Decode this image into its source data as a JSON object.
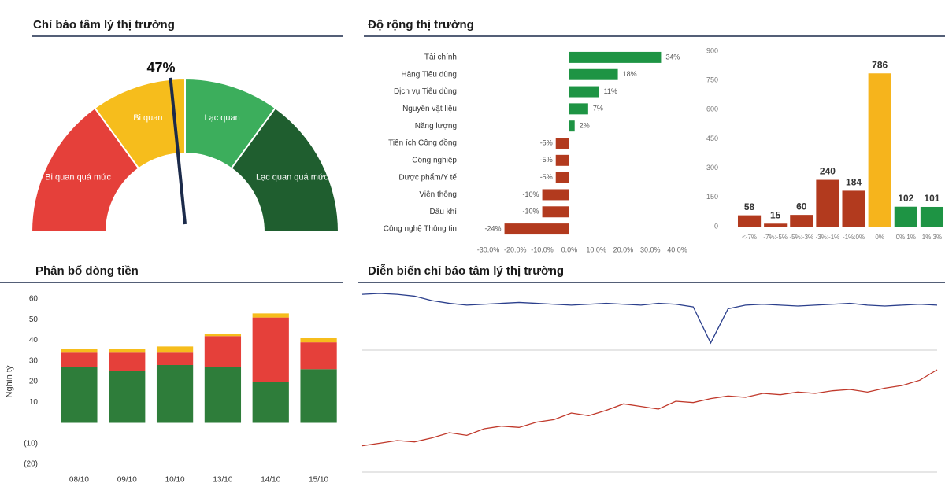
{
  "chart_data": [
    {
      "type": "gauge",
      "title": "Chỉ báo tâm lý thị trường",
      "value": 47,
      "value_label": "47%",
      "needle_color": "#1b2a4a",
      "bands": [
        {
          "label": "Bi quan quá mức",
          "from": 0,
          "to": 30,
          "color": "#e5403a"
        },
        {
          "label": "Bi quan",
          "from": 30,
          "to": 50,
          "color": "#f6bd1c"
        },
        {
          "label": "Lạc quan",
          "from": 50,
          "to": 70,
          "color": "#3cae5c"
        },
        {
          "label": "Lạc quan quá mức",
          "from": 70,
          "to": 100,
          "color": "#1f5e2f"
        }
      ]
    },
    {
      "type": "hbar",
      "title": "Độ rộng thị trường",
      "categories": [
        "Tài chính",
        "Hàng Tiêu dùng",
        "Dịch vụ Tiêu dùng",
        "Nguyên vật liệu",
        "Năng lượng",
        "Tiện ích Cộng đồng",
        "Công nghiệp",
        "Dược phẩm/Y tế",
        "Viễn thông",
        "Dầu khí",
        "Công nghệ Thông tin"
      ],
      "values": [
        34,
        18,
        11,
        7,
        2,
        -5,
        -5,
        -5,
        -10,
        -10,
        -24
      ],
      "value_labels": [
        "34%",
        "18%",
        "11%",
        "7%",
        "2%",
        "-5%",
        "-5%",
        "-5%",
        "-10%",
        "-10%",
        "-24%"
      ],
      "color": "#1e9444",
      "negative_color": "#b23a1e",
      "xlim": [
        -30,
        40
      ],
      "xticks": [
        {
          "value": -30,
          "label": "-30.0%"
        },
        {
          "value": -20,
          "label": "-20.0%"
        },
        {
          "value": -10,
          "label": "-10.0%"
        },
        {
          "value": 0,
          "label": "0.0%"
        },
        {
          "value": 10,
          "label": "10.0%"
        },
        {
          "value": 20,
          "label": "20.0%"
        },
        {
          "value": 30,
          "label": "30.0%"
        },
        {
          "value": 40,
          "label": "40.0%"
        }
      ]
    },
    {
      "type": "column",
      "categories": [
        "<-7%",
        "-7%:-5%",
        "-5%:-3%",
        "-3%:-1%",
        "-1%:0%",
        "0%",
        "0%:1%",
        "1%:3%"
      ],
      "values": [
        58,
        15,
        60,
        240,
        184,
        786,
        102,
        101
      ],
      "colors": [
        "#b23a1e",
        "#b23a1e",
        "#b23a1e",
        "#b23a1e",
        "#b23a1e",
        "#f6b41c",
        "#1e9444",
        "#1e9444"
      ],
      "ylim": [
        0,
        900
      ],
      "yticks": [
        0,
        150,
        300,
        450,
        600,
        750,
        900
      ]
    },
    {
      "type": "stacked-column",
      "title": "Phân bổ dòng tiền",
      "y_label": "Nghìn tỷ",
      "categories": [
        "08/10",
        "09/10",
        "10/10",
        "13/10",
        "14/10",
        "15/10"
      ],
      "series": [
        {
          "color": "#2e7d3a",
          "values": [
            27,
            25,
            28,
            27,
            20,
            26
          ]
        },
        {
          "color": "#e5403a",
          "values": [
            7,
            9,
            6,
            15,
            31,
            13
          ]
        },
        {
          "color": "#f6bd1c",
          "values": [
            2,
            2,
            3,
            1,
            2,
            2
          ]
        }
      ],
      "ylim": [
        -20,
        60
      ],
      "yticks": [
        {
          "value": -20,
          "label": "(20)"
        },
        {
          "value": -10,
          "label": "(10)"
        },
        10,
        20,
        30,
        40,
        50,
        60
      ]
    },
    {
      "type": "line",
      "title": "Diễn biến chỉ báo tâm lý thị trường",
      "color": "#2b3f8c",
      "values": [
        62,
        63,
        62,
        60,
        55,
        52,
        50,
        51,
        52,
        53,
        52,
        51,
        50,
        51,
        52,
        51,
        50,
        52,
        51,
        48,
        8,
        46,
        50,
        51,
        50,
        49,
        50,
        51,
        52,
        50,
        49,
        50,
        51,
        50
      ],
      "ylim": [
        0,
        70
      ]
    },
    {
      "type": "line",
      "color": "#c0392b",
      "values": [
        20,
        22,
        24,
        23,
        26,
        30,
        28,
        33,
        35,
        34,
        38,
        40,
        45,
        43,
        47,
        52,
        50,
        48,
        54,
        53,
        56,
        58,
        57,
        60,
        59,
        61,
        60,
        62,
        63,
        61,
        64,
        66,
        70,
        78
      ],
      "ylim": [
        0,
        90
      ]
    }
  ]
}
